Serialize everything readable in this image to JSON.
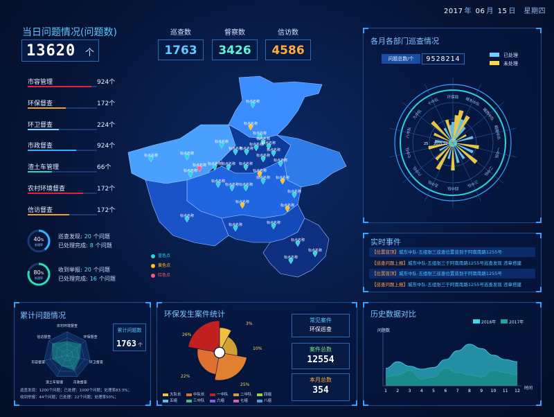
{
  "header": {
    "date_year": "2017",
    "date_year_suffix": "年",
    "date_month": "06",
    "date_month_suffix": "月",
    "date_day": "15",
    "date_day_suffix": "日",
    "weekday": "星期四"
  },
  "today": {
    "title": "当日问题情况(问题数)",
    "count": "13620",
    "unit": "个"
  },
  "categories": [
    {
      "label": "市容管理",
      "value": "924个",
      "fill": 0.92,
      "color": "#e6223a"
    },
    {
      "label": "环保督查",
      "value": "172个",
      "fill": 0.55,
      "color": "#f0a030"
    },
    {
      "label": "环卫督查",
      "value": "224个",
      "fill": 0.45,
      "color": "#7fd0ff"
    },
    {
      "label": "市政督查",
      "value": "924个",
      "fill": 0.7,
      "color": "#36b3ff"
    },
    {
      "label": "渣土车管理",
      "value": "66个",
      "fill": 0.35,
      "color": "#2ad4c0"
    },
    {
      "label": "农村环境督查",
      "value": "172个",
      "fill": 0.8,
      "color": "#e6223a"
    },
    {
      "label": "信访督查",
      "value": "172个",
      "fill": 0.6,
      "color": "#f0a030"
    }
  ],
  "rings": [
    {
      "percent": 40,
      "pct_text": "40",
      "pct_unit": "%",
      "caption": "处理率",
      "color": "#36b3ff",
      "line1_label": "巡查发现:",
      "line1_value": "20",
      "line1_unit": "个问题",
      "line2_label": "已处理完成:",
      "line2_value": "8",
      "line2_unit": "个问题"
    },
    {
      "percent": 80,
      "pct_text": "80",
      "pct_unit": "%",
      "caption": "处理率",
      "color": "#2ae0b0",
      "line1_label": "收到举报:",
      "line1_value": "20",
      "line1_unit": "个问题",
      "line2_label": "已处理完成:",
      "line2_value": "16",
      "line2_unit": "个问题"
    }
  ],
  "stats": [
    {
      "label": "巡查数",
      "value": "1763",
      "color": "#5ec8ff"
    },
    {
      "label": "督察数",
      "value": "3426",
      "color": "#62f0d8"
    },
    {
      "label": "信访数",
      "value": "4586",
      "color": "#ffab40"
    }
  ],
  "map": {
    "pin_label": "标点名称",
    "legend": [
      {
        "label": "蓝色点",
        "color": "#2ad4e0"
      },
      {
        "label": "黄色点",
        "color": "#ffc21a"
      },
      {
        "label": "红色点",
        "color": "#ff5a7a"
      }
    ]
  },
  "radar_panel": {
    "title": "各月各部门巡查情况",
    "total_label": "问题总数/个",
    "total_value": "9528214",
    "legend_done": "已处理",
    "legend_todo": "未处理",
    "color_done": "#6fd0ff",
    "color_todo": "#ffd84a",
    "departments": [
      "环保局",
      "城东中队",
      "城西中队",
      "城南中队",
      "一中队",
      "二中队",
      "三中队",
      "四中队",
      "五中队",
      "六中队",
      "七中队",
      "八中队",
      "九中队",
      "十中队"
    ],
    "scale_labels": [
      "25",
      "2015",
      "10"
    ]
  },
  "events_panel": {
    "title": "实时事件",
    "items": [
      {
        "tag": "【位置普顶】",
        "text": "城东中队-五组张三巡查位置普到于阿南南路1255号"
      },
      {
        "tag": "【巡查问题上报】",
        "text": "城东中队-五组张三于阿南南路1255号巡查发现 违章搭建"
      },
      {
        "tag": "【位置普顶】",
        "text": "城东中队-五组张三巡查位置普到于阿南南路1255号"
      },
      {
        "tag": "【巡查问题上报】",
        "text": "城东中队-五组张三于阿南南路1255号巡查发现 违章搭建"
      }
    ]
  },
  "history_panel": {
    "title": "历史数据对比",
    "ylabel": "问题数",
    "xlabel": "时间",
    "legend": [
      {
        "name": "2016年",
        "color": "#3ad8e8"
      },
      {
        "name": "2017年",
        "color": "#1ea898"
      }
    ]
  },
  "history_data": {
    "x": [
      1,
      2,
      3,
      4,
      5,
      6,
      7,
      8,
      9,
      10,
      11,
      12
    ],
    "series": [
      {
        "name": "2016年",
        "values": [
          40,
          55,
          45,
          38,
          42,
          60,
          80,
          95,
          85,
          70,
          60,
          55
        ]
      },
      {
        "name": "2017年",
        "values": [
          20,
          25,
          35,
          15,
          20,
          40,
          30,
          25,
          20,
          35,
          30,
          25
        ]
      }
    ],
    "ylim": [
      0,
      120
    ]
  },
  "cumulative_panel": {
    "title": "累计问题情况",
    "axes": [
      "农村环境督查",
      "环保督查",
      "环卫督查",
      "市政督查",
      "渣土车管理",
      "市容督查",
      "信访督查"
    ],
    "total_label": "累计问题数",
    "total_value": "1763",
    "total_unit": "个",
    "footer_line1": "巡查发现：1200个问题；已处理：1000个问题；处理率83.3%；",
    "footer_line2": "收到举报：44个问题；已处理：22个问题；处理率50%；"
  },
  "env_panel": {
    "title": "环保发生案件统计",
    "percent_labels": [
      "3%",
      "10%",
      "25%",
      "22%",
      "26%"
    ],
    "legend": [
      {
        "name": "大队长",
        "color": "#f0c040"
      },
      {
        "name": "中队长",
        "color": "#e07030"
      },
      {
        "name": "一中队",
        "color": "#c02020"
      },
      {
        "name": "二中队",
        "color": "#d0a030"
      },
      {
        "name": "四组",
        "color": "#a0d040"
      },
      {
        "name": "五组",
        "color": "#60c0e0"
      },
      {
        "name": "三中队",
        "color": "#40c080"
      },
      {
        "name": "六组",
        "color": "#8060e0"
      },
      {
        "name": "七组",
        "color": "#e060a0"
      },
      {
        "name": "八组",
        "color": "#40a0e0"
      }
    ],
    "common_label": "常见案件",
    "common_value": "环保巡查",
    "total_label": "案件总数",
    "total_value": "12554",
    "month_label": "本月总数",
    "month_value": "354"
  },
  "chart_data": [
    {
      "type": "area",
      "ylabel": "问题数",
      "xlabel": "时间",
      "x": [
        1,
        2,
        3,
        4,
        5,
        6,
        7,
        8,
        9,
        10,
        11,
        12
      ],
      "series": [
        {
          "name": "2016年",
          "values": [
            40,
            55,
            45,
            38,
            42,
            60,
            80,
            95,
            85,
            70,
            60,
            55
          ]
        },
        {
          "name": "2017年",
          "values": [
            20,
            25,
            35,
            15,
            20,
            40,
            30,
            25,
            20,
            35,
            30,
            25
          ]
        }
      ],
      "ylim": [
        0,
        120
      ],
      "legend": "top-right"
    },
    {
      "type": "pie",
      "labels": [
        "3%",
        "10%",
        "25%",
        "22%",
        "26%"
      ],
      "values": [
        3,
        10,
        25,
        22,
        26
      ],
      "legend": "bottom"
    }
  ]
}
